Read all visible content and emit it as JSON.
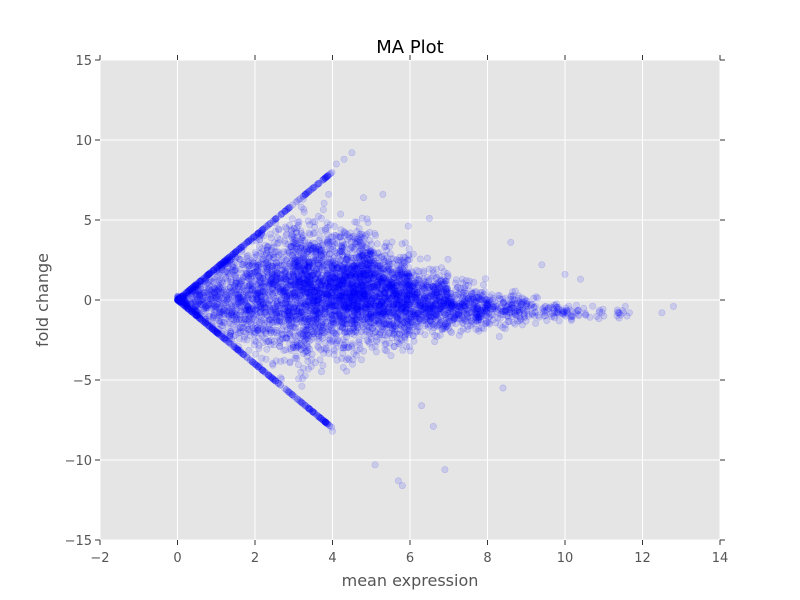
{
  "chart_data": {
    "type": "scatter",
    "title": "MA Plot",
    "xlabel": "mean expression",
    "ylabel": "fold change",
    "xlim": [
      -2,
      14
    ],
    "ylim": [
      -15,
      15
    ],
    "xticks": [
      -2,
      0,
      2,
      4,
      6,
      8,
      10,
      12,
      14
    ],
    "yticks": [
      -15,
      -10,
      -5,
      0,
      5,
      10,
      15
    ],
    "xtick_labels": [
      "−2",
      "0",
      "2",
      "4",
      "6",
      "8",
      "10",
      "12",
      "14"
    ],
    "ytick_labels": [
      "−15",
      "−10",
      "−5",
      "0",
      "5",
      "10",
      "15"
    ],
    "grid": true,
    "background": "#e5e5e5",
    "point_color": "#0000ff",
    "point_opacity": 0.12,
    "upper_boundary": {
      "description": "y = 2x",
      "x": [
        0,
        0.5,
        1,
        1.5,
        2,
        2.5,
        3,
        3.5,
        4
      ],
      "y": [
        0,
        1,
        2,
        3,
        4,
        5,
        6,
        7,
        8
      ]
    },
    "lower_boundary": {
      "description": "y = -2x",
      "x": [
        0,
        0.5,
        1,
        1.5,
        2,
        2.5,
        3,
        3.5,
        4
      ],
      "y": [
        0,
        -1,
        -2,
        -3,
        -4,
        -5,
        -6,
        -7,
        -8
      ]
    },
    "notable_points": [
      {
        "x": 4.5,
        "y": 9.2
      },
      {
        "x": 4.3,
        "y": 8.8
      },
      {
        "x": 4.1,
        "y": 8.5
      },
      {
        "x": 4.0,
        "y": -8.2
      },
      {
        "x": 5.1,
        "y": -10.3
      },
      {
        "x": 5.7,
        "y": -11.3
      },
      {
        "x": 5.8,
        "y": -11.6
      },
      {
        "x": 6.9,
        "y": -10.6
      },
      {
        "x": 6.6,
        "y": -7.9
      },
      {
        "x": 6.3,
        "y": -6.6
      },
      {
        "x": 12.8,
        "y": -0.4
      },
      {
        "x": 12.5,
        "y": -0.8
      },
      {
        "x": 11.6,
        "y": -1.0
      },
      {
        "x": 11.0,
        "y": -1.0
      },
      {
        "x": 10.4,
        "y": 1.3
      },
      {
        "x": 10.0,
        "y": 1.6
      },
      {
        "x": 9.4,
        "y": 2.2
      },
      {
        "x": 8.6,
        "y": 3.6
      },
      {
        "x": 8.4,
        "y": -5.5
      },
      {
        "x": 6.5,
        "y": 5.1
      },
      {
        "x": 5.3,
        "y": 6.6
      },
      {
        "x": 4.8,
        "y": 6.4
      },
      {
        "x": 3.9,
        "y": 6.6
      }
    ],
    "cloud_regions": [
      {
        "x_range": [
          0,
          1
        ],
        "y_center": 0,
        "y_spread": 0.9,
        "count": 300
      },
      {
        "x_range": [
          1,
          2
        ],
        "y_center": 0.2,
        "y_spread": 1.6,
        "count": 450
      },
      {
        "x_range": [
          2,
          3
        ],
        "y_center": 0.4,
        "y_spread": 2.0,
        "count": 650
      },
      {
        "x_range": [
          3,
          4
        ],
        "y_center": 0.6,
        "y_spread": 1.9,
        "count": 950
      },
      {
        "x_range": [
          4,
          5
        ],
        "y_center": 0.5,
        "y_spread": 1.7,
        "count": 1050
      },
      {
        "x_range": [
          5,
          6
        ],
        "y_center": 0.2,
        "y_spread": 1.4,
        "count": 800
      },
      {
        "x_range": [
          6,
          7
        ],
        "y_center": -0.2,
        "y_spread": 1.0,
        "count": 500
      },
      {
        "x_range": [
          7,
          8
        ],
        "y_center": -0.5,
        "y_spread": 0.7,
        "count": 300
      },
      {
        "x_range": [
          8,
          9
        ],
        "y_center": -0.6,
        "y_spread": 0.5,
        "count": 150
      },
      {
        "x_range": [
          9,
          10
        ],
        "y_center": -0.7,
        "y_spread": 0.35,
        "count": 70
      },
      {
        "x_range": [
          10,
          11.7
        ],
        "y_center": -0.8,
        "y_spread": 0.25,
        "count": 45
      }
    ]
  }
}
